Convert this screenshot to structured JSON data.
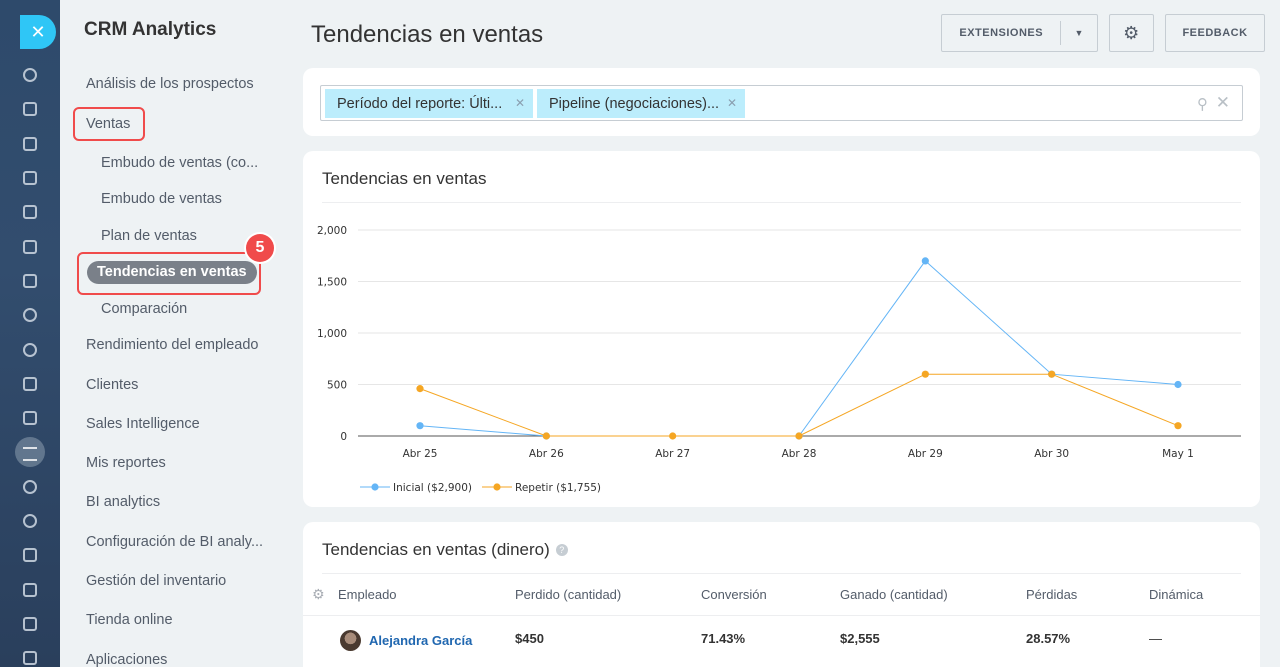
{
  "sidebar": {
    "brand": "CRM Analytics",
    "items": [
      "Análisis de los prospectos",
      "Ventas",
      "Rendimiento del empleado",
      "Clientes",
      "Sales Intelligence",
      "Mis reportes",
      "BI analytics",
      "Configuración de BI analy...",
      "Gestión del inventario",
      "Tienda online",
      "Aplicaciones"
    ],
    "sub_items": [
      "Embudo de ventas (co...",
      "Embudo de ventas",
      "Plan de ventas",
      "Tendencias en ventas",
      "Comparación"
    ],
    "step_badge": "5"
  },
  "header": {
    "title": "Tendencias en ventas",
    "extensions_label": "EXTENSIONES",
    "feedback_label": "FEEDBACK"
  },
  "filters": {
    "chips": [
      "Período del reporte: Últi...",
      "Pipeline (negociaciones)..."
    ]
  },
  "chart_card": {
    "title": "Tendencias en ventas"
  },
  "chart_data": {
    "type": "line",
    "x": [
      "Abr 25",
      "Abr 26",
      "Abr 27",
      "Abr 28",
      "Abr 29",
      "Abr 30",
      "May 1"
    ],
    "y_ticks": [
      "2,000",
      "1,500",
      "1,000",
      "500",
      "0"
    ],
    "ylim": [
      0,
      2000
    ],
    "grid": true,
    "legend_position": "bottom-left",
    "series": [
      {
        "name": "Inicial ($2,900)",
        "color": "#64b5f6",
        "values": [
          100,
          0,
          null,
          0,
          1700,
          600,
          500
        ]
      },
      {
        "name": "Repetir ($1,755)",
        "color": "#f5a623",
        "values": [
          460,
          0,
          0,
          0,
          600,
          600,
          100
        ]
      }
    ]
  },
  "table": {
    "title": "Tendencias en ventas (dinero)",
    "help_icon": "?",
    "columns": [
      "Empleado",
      "Perdido (cantidad)",
      "Conversión",
      "Ganado (cantidad)",
      "Pérdidas",
      "Dinámica"
    ],
    "rows": [
      {
        "employee": "Alejandra García",
        "lost": "$450",
        "conversion": "71.43%",
        "won": "$2,555",
        "losses": "28.57%",
        "dynamics": "—"
      }
    ]
  }
}
